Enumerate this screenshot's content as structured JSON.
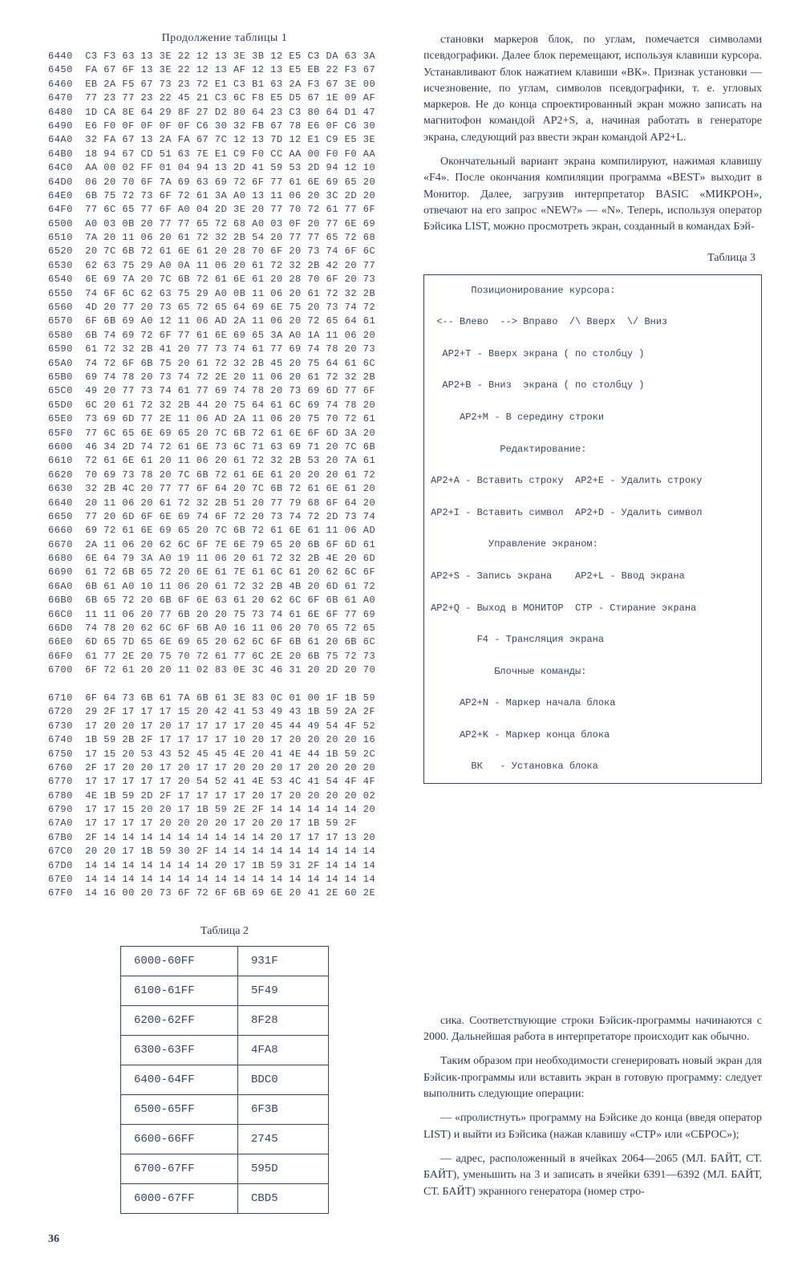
{
  "table1": {
    "continuation_title": "Продолжение таблицы 1",
    "hexdump": "6440  C3 F3 63 13 3E 22 12 13 3E 3B 12 E5 C3 DA 63 3A\n6450  FA 67 6F 13 3E 22 12 13 AF 12 13 E5 EB 22 F3 67\n6460  EB 2A F5 67 73 23 72 E1 C3 B1 63 2A F3 67 3E 00\n6470  77 23 77 23 22 45 21 C3 6C F8 E5 D5 67 1E 09 AF\n6480  1D CA 8E 64 29 8F 27 D2 80 64 23 C3 80 64 D1 47\n6490  E6 F0 0F 0F 0F 0F C6 30 32 FB 67 78 E6 0F C6 30\n64A0  32 FA 67 13 2A FA 67 7C 12 13 7D 12 E1 C9 E5 3E\n64B0  18 94 67 CD 51 63 7E E1 C9 F0 CC AA 00 F0 F0 AA\n64C0  AA 00 02 FF 01 04 94 13 2D 41 59 53 2D 94 12 10\n64D0  06 20 70 6F 7A 69 63 69 72 6F 77 61 6E 69 65 20\n64E0  6B 75 72 73 6F 72 61 3A A0 13 11 06 20 3C 2D 20\n64F0  77 6C 65 77 6F A0 04 2D 3E 20 77 70 72 61 77 6F\n6500  A0 03 0B 20 77 77 65 72 68 A0 03 0F 20 77 6E 69\n6510  7A 20 11 06 20 61 72 32 2B 54 20 77 77 65 72 68\n6520  20 7C 6B 72 61 6E 61 20 28 70 6F 20 73 74 6F 6C\n6530  62 63 75 29 A0 0A 11 06 20 61 72 32 2B 42 20 77\n6540  6E 69 7A 20 7C 6B 72 61 6E 61 20 28 70 6F 20 73\n6550  74 6F 6C 62 63 75 29 A0 0B 11 06 20 61 72 32 2B\n6560  4D 20 77 20 73 65 72 65 64 69 6E 75 20 73 74 72\n6570  6F 6B 69 A0 12 11 06 AD 2A 11 06 20 72 65 64 61\n6580  6B 74 69 72 6F 77 61 6E 69 65 3A A0 1A 11 06 20\n6590  61 72 32 2B 41 20 77 73 74 61 77 69 74 78 20 73\n65A0  74 72 6F 6B 75 20 61 72 32 2B 45 20 75 64 61 6C\n65B0  69 74 78 20 73 74 72 2E 20 11 06 20 61 72 32 2B\n65C0  49 20 77 73 74 61 77 69 74 78 20 73 69 6D 77 6F\n65D0  6C 20 61 72 32 2B 44 20 75 64 61 6C 69 74 78 20\n65E0  73 69 6D 77 2E 11 06 AD 2A 11 06 20 75 70 72 61\n65F0  77 6C 65 6E 69 65 20 7C 6B 72 61 6E 6F 6D 3A 20\n6600  46 34 2D 74 72 61 6E 73 6C 71 63 69 71 20 7C 6B\n6610  72 61 6E 61 20 11 06 20 61 72 32 2B 53 20 7A 61\n6620  70 69 73 78 20 7C 6B 72 61 6E 61 20 20 20 61 72\n6630  32 2B 4C 20 77 77 6F 64 20 7C 6B 72 61 6E 61 20\n6640  20 11 06 20 61 72 32 2B 51 20 77 79 68 6F 64 20\n6650  77 20 6D 6F 6E 69 74 6F 72 20 73 74 72 2D 73 74\n6660  69 72 61 6E 69 65 20 7C 6B 72 61 6E 61 11 06 AD\n6670  2A 11 06 20 62 6C 6F 7E 6E 79 65 20 6B 6F 6D 61\n6680  6E 64 79 3A A0 19 11 06 20 61 72 32 2B 4E 20 6D\n6690  61 72 6B 65 72 20 6E 61 7E 61 6C 61 20 62 6C 6F\n66A0  6B 61 A0 10 11 06 20 61 72 32 2B 4B 20 6D 61 72\n66B0  6B 65 72 20 6B 6F 6E 63 61 20 62 6C 6F 6B 61 A0\n66C0  11 11 06 20 77 6B 20 20 75 73 74 61 6E 6F 77 69\n66D0  74 78 20 62 6C 6F 6B A0 16 11 06 20 70 65 72 65\n66E0  6D 65 7D 65 6E 69 65 20 62 6C 6F 6B 61 20 6B 6C\n66F0  61 77 2E 20 75 70 72 61 77 6C 2E 20 6B 75 72 73\n6700  6F 72 61 20 20 11 02 83 0E 3C 46 31 20 2D 20 70\n\n6710  6F 64 73 6B 61 7A 6B 61 3E 83 0C 01 00 1F 1B 59\n6720  29 2F 17 17 17 15 20 42 41 53 49 43 1B 59 2A 2F\n6730  17 20 20 17 20 17 17 17 17 20 45 44 49 54 4F 52\n6740  1B 59 2B 2F 17 17 17 17 10 20 17 20 20 20 20 16\n6750  17 15 20 53 43 52 45 45 4E 20 41 4E 44 1B 59 2C\n6760  2F 17 20 20 17 20 17 17 20 20 20 17 20 20 20 20\n6770  17 17 17 17 17 20 54 52 41 4E 53 4C 41 54 4F 4F\n6780  4E 1B 59 2D 2F 17 17 17 17 20 17 20 20 20 20 02\n6790  17 17 15 20 20 17 1B 59 2E 2F 14 14 14 14 14 20\n67A0  17 17 17 17 20 20 20 20 17 20 20 17 1B 59 2F\n67B0  2F 14 14 14 14 14 14 14 14 14 20 17 17 17 13 20\n67C0  20 20 17 1B 59 30 2F 14 14 14 14 14 14 14 14 14\n67D0  14 14 14 14 14 14 14 20 17 1B 59 31 2F 14 14 14\n67E0  14 14 14 14 14 14 14 14 14 14 14 14 14 14 14 14\n67F0  14 16 00 20 73 6F 72 6F 6B 69 6E 20 41 2E 60 2E"
  },
  "paragraphs_top": [
    "становки маркеров блок, по углам, помечается символами псевдографики. Далее блок перемещают, используя клавиши курсора. Устанавливают блок нажатием клавиши «ВК». Признак установки — исчезновение, по углам, символов псевдографики, т. е. угловых маркеров. Не до конца спроектированный экран можно записать на магнитофон командой АР2+S, а, начиная работать в генераторе экрана, следующий раз ввести экран командой АР2+L.",
    "Окончательный вариант экрана компилируют, нажимая клавишу «F4». После окончания компиляции программа «BEST» выходит в Монитор. Далее, загрузив интерпретатор BASIC «МИКРОН», отвечают на его запрос «NEW?» — «N». Теперь, используя оператор Бэйсика LIST, можно просмотреть экран, созданный в командах Бэй-"
  ],
  "table3": {
    "title": "Таблица 3",
    "content": "       Позиционирование курсора:\n\n <-- Влево  --> Вправо  /\\ Вверх  \\/ Вниз\n\n  АР2+T - Вверх экрана ( по столбцу )\n\n  АР2+B - Вниз  экрана ( по столбцу )\n\n     АР2+M - В середину строки\n\n            Редактирование:\n\nАР2+A - Вставить строку  АР2+E - Удалить строку\n\nАР2+I - Вставить символ  АР2+D - Удалить символ\n\n          Управление экраном:\n\nАР2+S - Запись экрана    АР2+L - Ввод экрана\n\nАР2+Q - Выход в МОНИТОР  СТР - Стирание экрана\n\n        F4 - Трансляция экрана\n\n           Блочные команды:\n\n     АР2+N - Маркер начала блока\n\n     АР2+K - Маркер конца блока\n\n       ВК   - Установка блока"
  },
  "table2": {
    "title": "Таблица 2",
    "rows": [
      [
        "6000-60FF",
        "931F"
      ],
      [
        "6100-61FF",
        "5F49"
      ],
      [
        "6200-62FF",
        "8F28"
      ],
      [
        "6300-63FF",
        "4FA8"
      ],
      [
        "6400-64FF",
        "BDC0"
      ],
      [
        "6500-65FF",
        "6F3B"
      ],
      [
        "6600-66FF",
        "2745"
      ],
      [
        "6700-67FF",
        "595D"
      ],
      [
        "6000-67FF",
        "CBD5"
      ]
    ]
  },
  "paragraphs_bottom": [
    "сика. Соответствующие строки Бэйсик-программы начинаются с 2000. Дальнейшая работа в интерпретаторе происходит как обычно.",
    "Таким образом при необходимости сгенерировать новый экран для Бэйсик-программы или вставить экран в готовую программу: следует выполнить следующие операции:",
    "— «пролистнуть» программу на Бэйсике до конца (введя оператор LIST) и выйти из Бэйсика (нажав клавишу «СТР» или «СБРОС»);",
    "— адрес, расположенный в ячейках 2064—2065 (МЛ. БАЙТ, СТ. БАЙТ), уменьшить на 3 и записать в ячейки 6391—6392 (МЛ. БАЙТ, СТ. БАЙТ) экранного генератора (номер стро-"
  ],
  "page_number": "36"
}
